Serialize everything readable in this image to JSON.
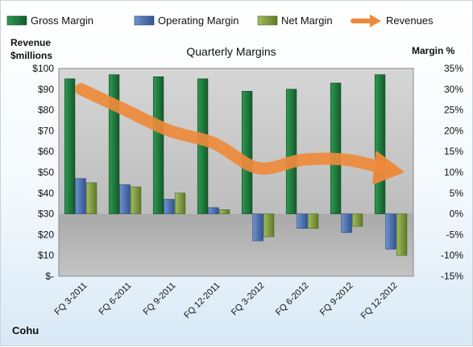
{
  "chart_data": {
    "type": "bar",
    "title": "Quarterly Margins",
    "company": "Cohu",
    "y_left_label_line1": "Revenue",
    "y_left_label_line2": "$millions",
    "y_right_label": "Margin %",
    "categories": [
      "FQ 3-2011",
      "FQ 6-2011",
      "FQ 9-2011",
      "FQ 12-2011",
      "FQ 3-2012",
      "FQ 6-2012",
      "FQ 9-2012",
      "FQ 12-2012"
    ],
    "series": [
      {
        "name": "Gross Margin",
        "axis": "right",
        "kind": "bar",
        "values": [
          32.5,
          33.5,
          33.0,
          32.5,
          29.5,
          30.0,
          31.5,
          33.5
        ]
      },
      {
        "name": "Operating Margin",
        "axis": "right",
        "kind": "bar",
        "values": [
          8.5,
          7.0,
          3.5,
          1.5,
          -6.5,
          -3.5,
          -4.5,
          -8.5
        ]
      },
      {
        "name": "Net Margin",
        "axis": "right",
        "kind": "bar",
        "values": [
          7.5,
          6.5,
          5.0,
          1.0,
          -5.5,
          -3.5,
          -3.0,
          -10.0
        ]
      },
      {
        "name": "Revenues",
        "axis": "left",
        "kind": "line",
        "values": [
          90,
          80,
          70,
          64,
          52,
          56,
          56,
          51
        ]
      }
    ],
    "y_left": {
      "min": 0,
      "max": 100,
      "step": 10,
      "tick_labels": [
        "$-",
        "$10",
        "$20",
        "$30",
        "$40",
        "$50",
        "$60",
        "$70",
        "$80",
        "$90",
        "$100"
      ]
    },
    "y_right": {
      "min": -15,
      "max": 35,
      "step": 5,
      "tick_labels": [
        "-15%",
        "-10%",
        "-5%",
        "0%",
        "5%",
        "10%",
        "15%",
        "20%",
        "25%",
        "30%",
        "35%"
      ]
    },
    "legend_position": "top",
    "grid": false,
    "colors": {
      "Gross Margin": "#1f7a3d",
      "Operating Margin": "#4a6fb0",
      "Net Margin": "#7e9a3e",
      "Revenues": "#ee8a3c",
      "plot_upper": "#c8c8c8",
      "plot_lower": "#a8a8a8"
    }
  }
}
